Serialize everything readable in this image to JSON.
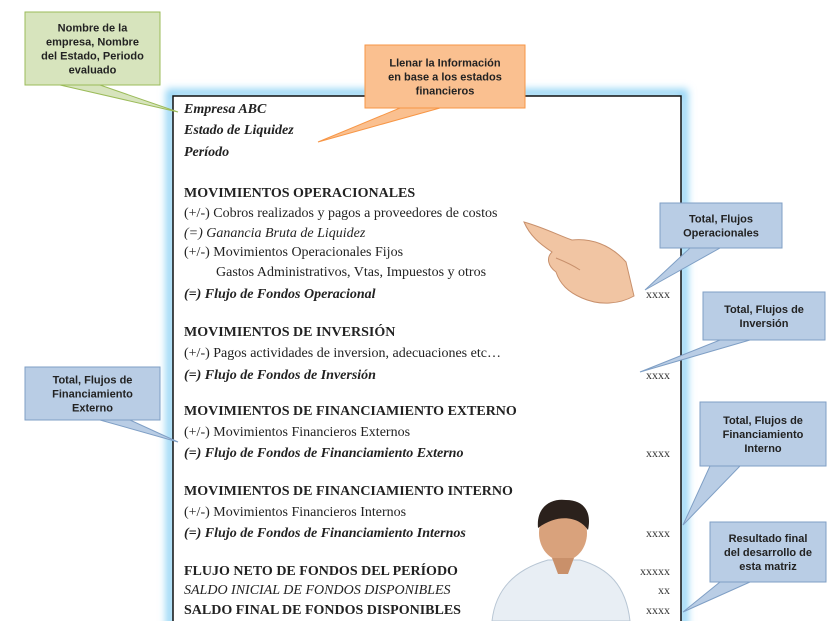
{
  "callouts": [
    {
      "lines": [
        "Nombre de la",
        "empresa, Nombre",
        "del Estado, Periodo",
        "evaluado"
      ]
    },
    {
      "lines": [
        "Llenar la Información",
        "en base a los estados",
        "financieros"
      ]
    },
    {
      "lines": [
        "Total, Flujos",
        "Operacionales"
      ]
    },
    {
      "lines": [
        "Total, Flujos de",
        "Inversión"
      ]
    },
    {
      "lines": [
        "Total, Flujos de",
        "Financiamiento",
        "Externo"
      ]
    },
    {
      "lines": [
        "Total, Flujos de",
        "Financiamiento",
        "Interno"
      ]
    },
    {
      "lines": [
        "Resultado final",
        "del desarrollo de",
        "esta matriz"
      ]
    }
  ],
  "document": {
    "lines": [
      {
        "text": "Empresa ABC"
      },
      {
        "text": "Estado de Liquidez"
      },
      {
        "text": "Período"
      },
      {
        "text": "MOVIMIENTOS OPERACIONALES"
      },
      {
        "text": "(+/-) Cobros realizados y pagos a proveedores de costos"
      },
      {
        "text": "(=) Ganancia Bruta de Liquidez"
      },
      {
        "text": "(+/-) Movimientos Operacionales Fijos"
      },
      {
        "text": "Gastos Administrativos, Vtas, Impuestos y otros"
      },
      {
        "text": "(=) Flujo de Fondos Operacional",
        "amount": "xxxx"
      },
      {
        "text": "MOVIMIENTOS DE INVERSIÓN"
      },
      {
        "text": "(+/-) Pagos actividades de inversion, adecuaciones etc…"
      },
      {
        "text": "(=) Flujo de Fondos de Inversión",
        "amount": "xxxx"
      },
      {
        "text": "MOVIMIENTOS DE FINANCIAMIENTO EXTERNO"
      },
      {
        "text": "(+/-) Movimientos Financieros Externos"
      },
      {
        "text": "(=) Flujo de Fondos de Financiamiento Externo",
        "amount": "xxxx"
      },
      {
        "text": "MOVIMIENTOS DE FINANCIAMIENTO INTERNO"
      },
      {
        "text": "(+/-) Movimientos Financieros Internos"
      },
      {
        "text": "(=) Flujo de Fondos de Financiamiento Internos",
        "amount": "xxxx"
      },
      {
        "text": "FLUJO NETO DE FONDOS DEL PERÍODO",
        "amount": "xxxxx"
      },
      {
        "text": "SALDO INICIAL DE FONDOS DISPONIBLES",
        "amount": "xx"
      },
      {
        "text": "SALDO FINAL DE FONDOS DISPONIBLES",
        "amount": "xxxx"
      }
    ]
  }
}
